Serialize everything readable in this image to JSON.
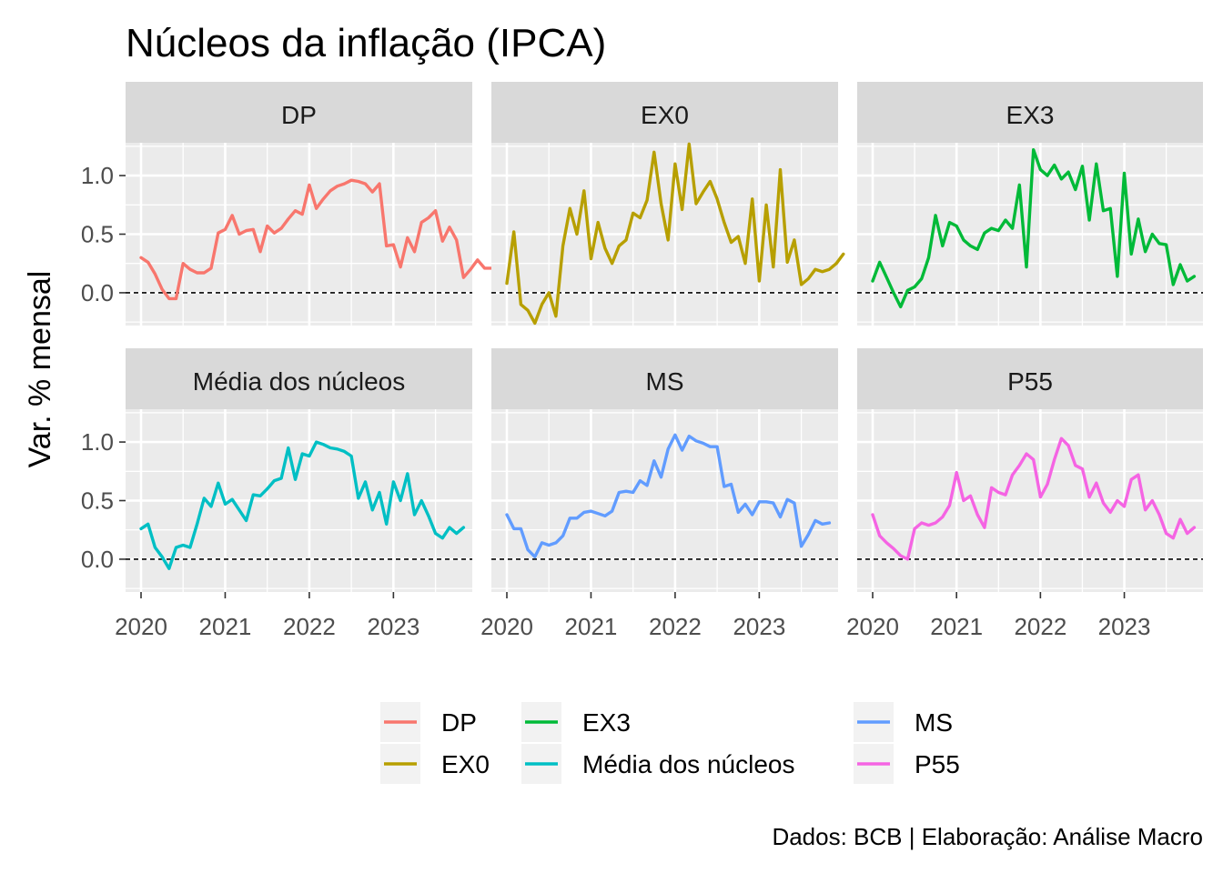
{
  "chart_data": {
    "type": "line",
    "title": "Núcleos da inflação (IPCA)",
    "ylabel": "Var. % mensal",
    "xlabel": "",
    "caption": "Dados: BCB | Elaboração: Análise Macro",
    "x_ticks": [
      "2020",
      "2021",
      "2022",
      "2023"
    ],
    "y_ticks": [
      "0.0",
      "0.5",
      "1.0"
    ],
    "ylim": [
      -0.28,
      1.28
    ],
    "x_start": "2020-01",
    "grid": true,
    "reference_line": 0,
    "legend_position": "bottom",
    "legend": [
      "DP",
      "EX0",
      "EX3",
      "Média dos núcleos",
      "MS",
      "P55"
    ],
    "series": [
      {
        "name": "DP",
        "color": "#F8766D",
        "values": [
          0.3,
          0.26,
          0.16,
          0.03,
          -0.05,
          -0.05,
          0.25,
          0.2,
          0.17,
          0.17,
          0.21,
          0.51,
          0.54,
          0.66,
          0.5,
          0.53,
          0.54,
          0.35,
          0.57,
          0.51,
          0.55,
          0.63,
          0.7,
          0.67,
          0.92,
          0.72,
          0.8,
          0.87,
          0.91,
          0.93,
          0.96,
          0.95,
          0.93,
          0.86,
          0.93,
          0.4,
          0.41,
          0.22,
          0.47,
          0.35,
          0.6,
          0.64,
          0.7,
          0.44,
          0.56,
          0.45,
          0.13,
          0.2,
          0.28,
          0.21,
          0.21
        ]
      },
      {
        "name": "EX0",
        "color": "#B79F00",
        "values": [
          0.08,
          0.52,
          -0.1,
          -0.15,
          -0.26,
          -0.1,
          0.0,
          -0.2,
          0.4,
          0.72,
          0.5,
          0.87,
          0.29,
          0.6,
          0.38,
          0.25,
          0.4,
          0.45,
          0.68,
          0.64,
          0.79,
          1.2,
          0.76,
          0.45,
          1.1,
          0.71,
          1.27,
          0.76,
          0.86,
          0.95,
          0.8,
          0.6,
          0.43,
          0.48,
          0.25,
          0.8,
          0.1,
          0.75,
          0.22,
          1.05,
          0.26,
          0.45,
          0.07,
          0.12,
          0.2,
          0.18,
          0.2,
          0.25,
          0.33
        ]
      },
      {
        "name": "EX3",
        "color": "#00BA38",
        "values": [
          0.1,
          0.26,
          0.13,
          0.0,
          -0.12,
          0.02,
          0.05,
          0.12,
          0.3,
          0.66,
          0.4,
          0.6,
          0.57,
          0.45,
          0.4,
          0.37,
          0.51,
          0.55,
          0.53,
          0.62,
          0.55,
          0.92,
          0.22,
          1.22,
          1.05,
          1.0,
          1.09,
          0.97,
          1.03,
          0.88,
          1.08,
          0.62,
          1.1,
          0.7,
          0.72,
          0.14,
          1.02,
          0.33,
          0.63,
          0.35,
          0.5,
          0.42,
          0.41,
          0.07,
          0.24,
          0.1,
          0.14
        ]
      },
      {
        "name": "Média dos núcleos",
        "color": "#00BFC4",
        "values": [
          0.26,
          0.3,
          0.1,
          0.02,
          -0.08,
          0.1,
          0.12,
          0.1,
          0.3,
          0.52,
          0.45,
          0.65,
          0.47,
          0.51,
          0.42,
          0.33,
          0.55,
          0.54,
          0.6,
          0.67,
          0.69,
          0.95,
          0.68,
          0.9,
          0.88,
          1.0,
          0.98,
          0.95,
          0.94,
          0.92,
          0.88,
          0.52,
          0.66,
          0.42,
          0.57,
          0.3,
          0.66,
          0.5,
          0.73,
          0.38,
          0.5,
          0.37,
          0.22,
          0.18,
          0.27,
          0.22,
          0.27
        ]
      },
      {
        "name": "MS",
        "color": "#619CFF",
        "values": [
          0.38,
          0.26,
          0.26,
          0.08,
          0.02,
          0.14,
          0.12,
          0.14,
          0.2,
          0.35,
          0.35,
          0.4,
          0.41,
          0.39,
          0.37,
          0.41,
          0.57,
          0.58,
          0.57,
          0.67,
          0.63,
          0.84,
          0.7,
          0.94,
          1.06,
          0.93,
          1.05,
          1.01,
          0.99,
          0.96,
          0.96,
          0.62,
          0.64,
          0.4,
          0.47,
          0.38,
          0.49,
          0.49,
          0.48,
          0.36,
          0.51,
          0.48,
          0.11,
          0.21,
          0.33,
          0.3,
          0.31
        ]
      },
      {
        "name": "P55",
        "color": "#F564E3",
        "values": [
          0.38,
          0.2,
          0.14,
          0.09,
          0.03,
          0.0,
          0.26,
          0.31,
          0.29,
          0.31,
          0.36,
          0.46,
          0.74,
          0.5,
          0.54,
          0.38,
          0.27,
          0.61,
          0.57,
          0.55,
          0.72,
          0.8,
          0.9,
          0.85,
          0.53,
          0.64,
          0.85,
          1.03,
          0.97,
          0.8,
          0.77,
          0.53,
          0.65,
          0.48,
          0.4,
          0.5,
          0.45,
          0.68,
          0.72,
          0.42,
          0.5,
          0.38,
          0.22,
          0.18,
          0.34,
          0.22,
          0.27
        ]
      }
    ]
  }
}
